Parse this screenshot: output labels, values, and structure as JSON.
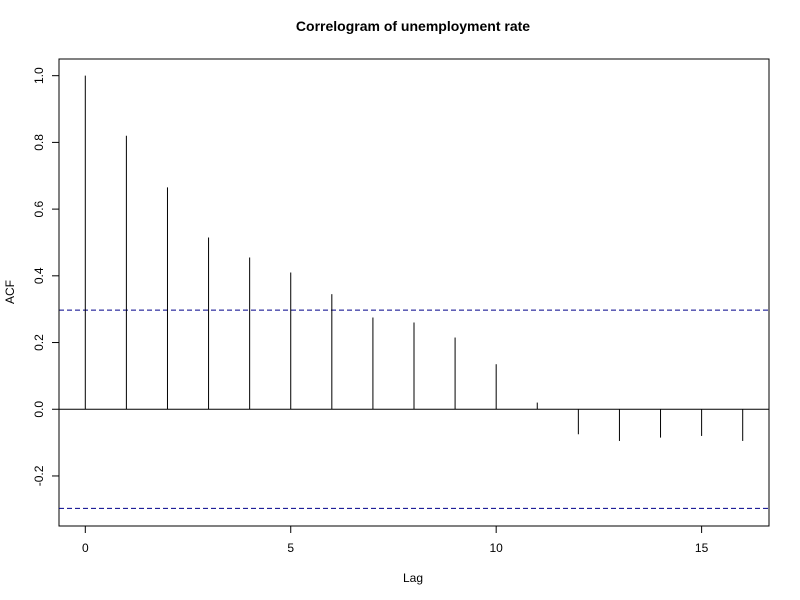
{
  "chart_data": {
    "type": "bar",
    "title": "Correlogram of unemployment rate",
    "xlabel": "Lag",
    "ylabel": "ACF",
    "x": [
      0,
      1,
      2,
      3,
      4,
      5,
      6,
      7,
      8,
      9,
      10,
      11,
      12,
      13,
      14,
      15,
      16
    ],
    "values": [
      1.0,
      0.82,
      0.665,
      0.515,
      0.455,
      0.41,
      0.345,
      0.275,
      0.26,
      0.215,
      0.135,
      0.02,
      -0.075,
      -0.095,
      -0.085,
      -0.08,
      -0.095
    ],
    "confidence_bound": 0.297,
    "xlim": [
      -0.64,
      16.64
    ],
    "ylim": [
      -0.35,
      1.05
    ],
    "x_ticks": [
      0,
      5,
      10,
      15
    ],
    "x_tick_labels": [
      "0",
      "5",
      "10",
      "15"
    ],
    "y_ticks": [
      -0.2,
      0.0,
      0.2,
      0.4,
      0.6,
      0.8,
      1.0
    ],
    "y_tick_labels": [
      "-0.2",
      "0.0",
      "0.2",
      "0.4",
      "0.6",
      "0.8",
      "1.0"
    ],
    "grid": false,
    "colors": {
      "spike": "#000000",
      "bound": "#00008b",
      "zero": "#000000"
    }
  }
}
